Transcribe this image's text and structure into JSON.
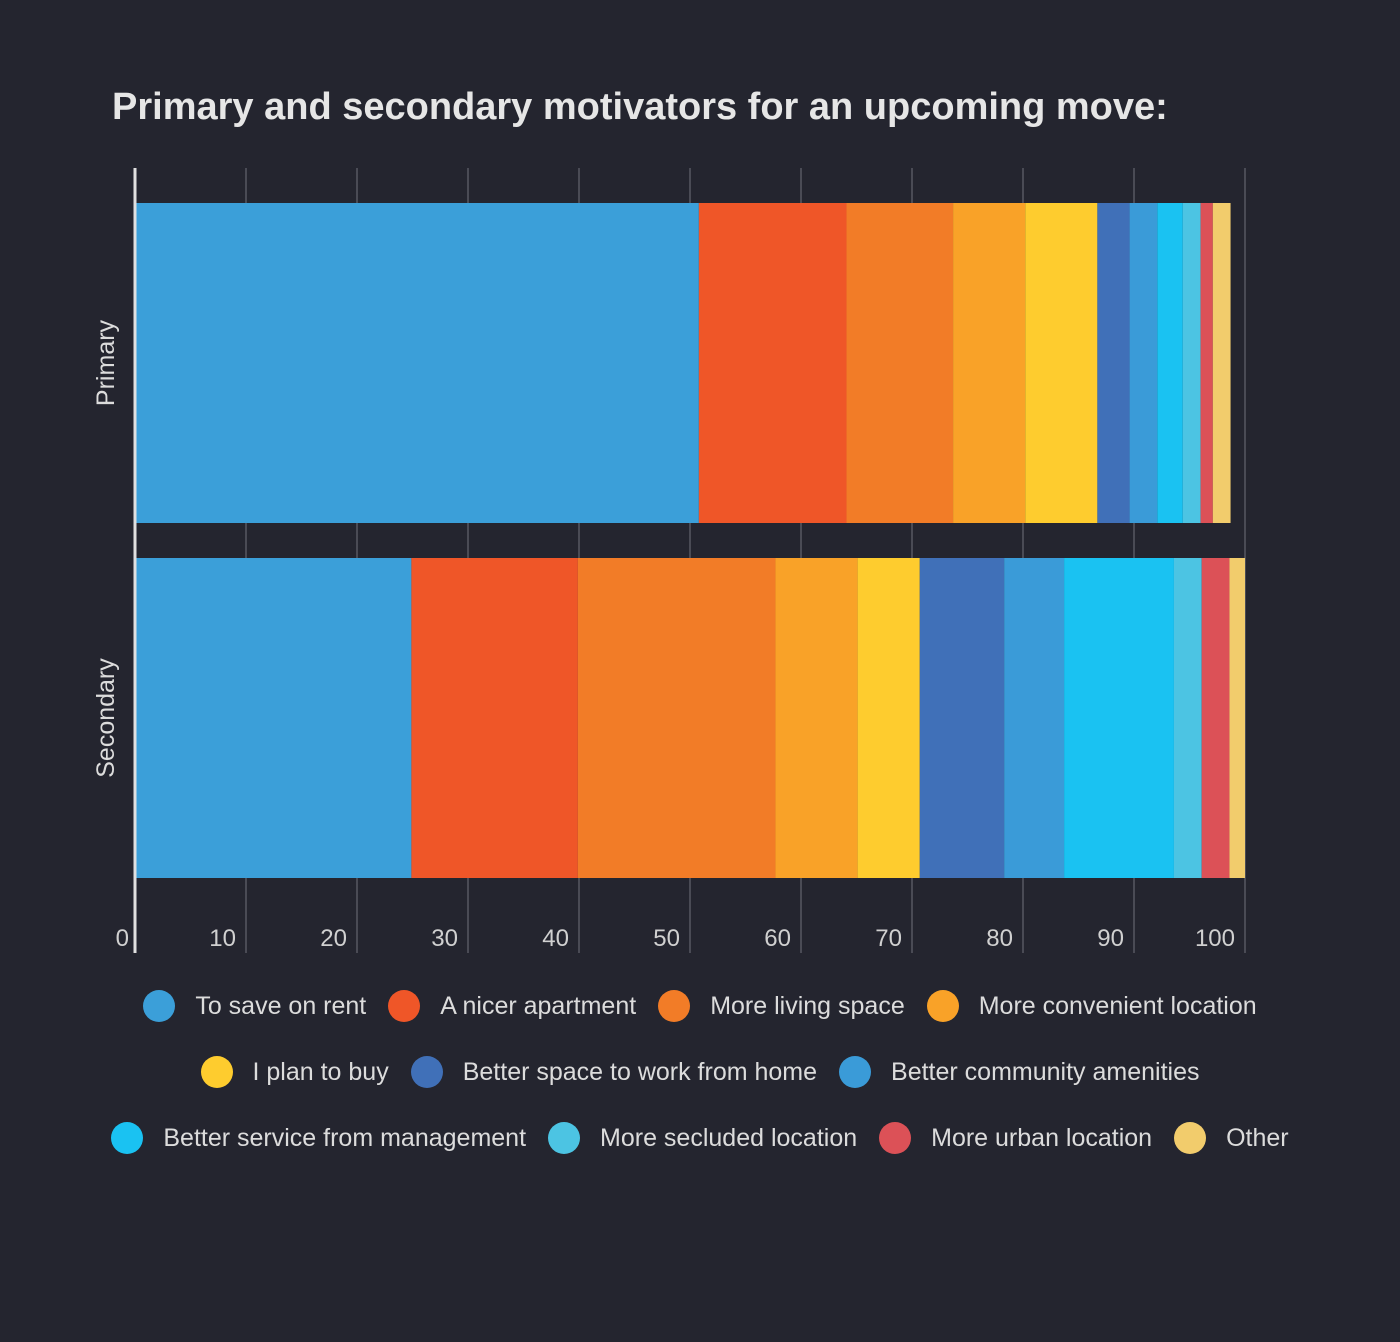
{
  "chart_data": {
    "type": "bar",
    "orientation": "horizontal",
    "stacked": true,
    "title": "Primary and secondary motivators for an upcoming move:",
    "categories": [
      "Primary",
      "Secondary"
    ],
    "xlim": [
      0,
      100
    ],
    "xticks": [
      0,
      10,
      20,
      30,
      40,
      50,
      60,
      70,
      80,
      90,
      100
    ],
    "grid": true,
    "legend_position": "bottom",
    "series": [
      {
        "name": "To save on rent",
        "color": "#3b9fd9",
        "values": [
          50.8,
          24.9
        ]
      },
      {
        "name": "A nicer apartment",
        "color": "#ef5628",
        "values": [
          13.3,
          15.0
        ]
      },
      {
        "name": "More living space",
        "color": "#f27c27",
        "values": [
          9.6,
          17.8
        ]
      },
      {
        "name": "More convenient location",
        "color": "#f9a228",
        "values": [
          6.5,
          7.4
        ]
      },
      {
        "name": "I plan to buy",
        "color": "#fecc2e",
        "values": [
          6.5,
          5.6
        ]
      },
      {
        "name": "Better space to work from home",
        "color": "#4070b8",
        "values": [
          2.9,
          7.6
        ]
      },
      {
        "name": "Better community amenities",
        "color": "#3a9bd8",
        "values": [
          2.5,
          5.4
        ]
      },
      {
        "name": "Better service from management",
        "color": "#1ac2f2",
        "values": [
          2.3,
          9.9
        ]
      },
      {
        "name": "More secluded location",
        "color": "#4cc4e3",
        "values": [
          1.6,
          2.5
        ]
      },
      {
        "name": "More urban location",
        "color": "#dc5157",
        "values": [
          1.1,
          2.5
        ]
      },
      {
        "name": "Other",
        "color": "#f2cc6c",
        "values": [
          1.6,
          1.4
        ]
      }
    ]
  }
}
